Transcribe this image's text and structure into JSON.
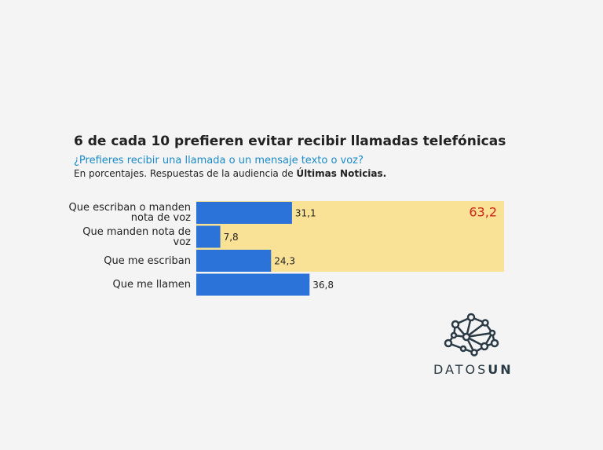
{
  "chart_data": {
    "type": "bar",
    "title": "6 de cada 10 prefieren evitar recibir llamadas telefónicas",
    "subtitle": "¿Prefieres recibir una llamada o un mensaje texto o voz?",
    "note": "En porcentajes. Respuestas de la audiencia de ",
    "note_source": "Últimas Noticias.",
    "categories": [
      "Que escriban o manden nota de voz",
      "Que manden nota de voz",
      "Que me escriban",
      "Que me llamen"
    ],
    "values": [
      31.1,
      7.8,
      24.3,
      36.8
    ],
    "value_labels": [
      "31,1",
      "7,8",
      "24,3",
      "36,8"
    ],
    "color": "#2b72d9",
    "xlim": [
      0,
      100
    ],
    "group_label": "63,2",
    "group_color": "#f9e196"
  },
  "logo": {
    "text": "DATOS",
    "bold": "UN"
  }
}
